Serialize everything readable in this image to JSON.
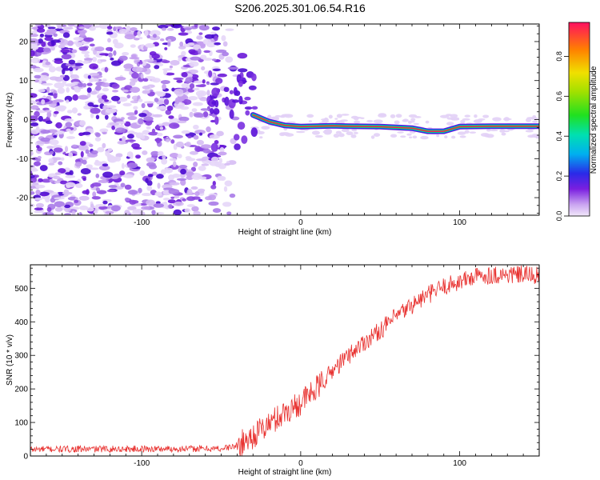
{
  "title": "S206.2025.301.06.54.R16",
  "chart_data": [
    {
      "type": "heatmap",
      "xlabel": "Height of straight line (km)",
      "ylabel": "Frequency (Hz)",
      "xlim": [
        -170,
        150
      ],
      "ylim": [
        -24.5,
        24.5
      ],
      "xticks": [
        -100,
        0,
        100
      ],
      "yticks": [
        -20,
        -10,
        0,
        10,
        20
      ],
      "colorbar": {
        "label": "Normalized spectral amplitude",
        "ticks": [
          0.0,
          0.2,
          0.4,
          0.6,
          0.8
        ],
        "range": [
          0,
          0.97
        ]
      },
      "signal_line": {
        "description": "strong narrow-band signal",
        "x": [
          -30,
          -20,
          -10,
          0,
          10,
          20,
          30,
          50,
          70,
          80,
          90,
          100,
          120,
          150
        ],
        "y": [
          1.2,
          -0.5,
          -1.5,
          -1.8,
          -1.7,
          -1.6,
          -1.7,
          -1.8,
          -2.2,
          -3.0,
          -3.0,
          -1.8,
          -1.7,
          -1.7
        ]
      }
    },
    {
      "type": "line",
      "xlabel": "Height of straight line (km)",
      "ylabel": "SNR (10 * v/v)",
      "xlim": [
        -170,
        150
      ],
      "ylim": [
        0,
        570
      ],
      "xticks": [
        -100,
        0,
        100
      ],
      "yticks": [
        0,
        100,
        200,
        300,
        400,
        500
      ],
      "color": "#e8312f",
      "trend": {
        "x": [
          -170,
          -50,
          -40,
          -30,
          -20,
          -10,
          0,
          10,
          20,
          30,
          40,
          50,
          60,
          70,
          80,
          90,
          100,
          110,
          120,
          130,
          140,
          150
        ],
        "y": [
          20,
          22,
          30,
          60,
          95,
          130,
          160,
          200,
          255,
          300,
          340,
          375,
          415,
          450,
          480,
          505,
          520,
          535,
          540,
          540,
          540,
          538
        ]
      }
    }
  ]
}
